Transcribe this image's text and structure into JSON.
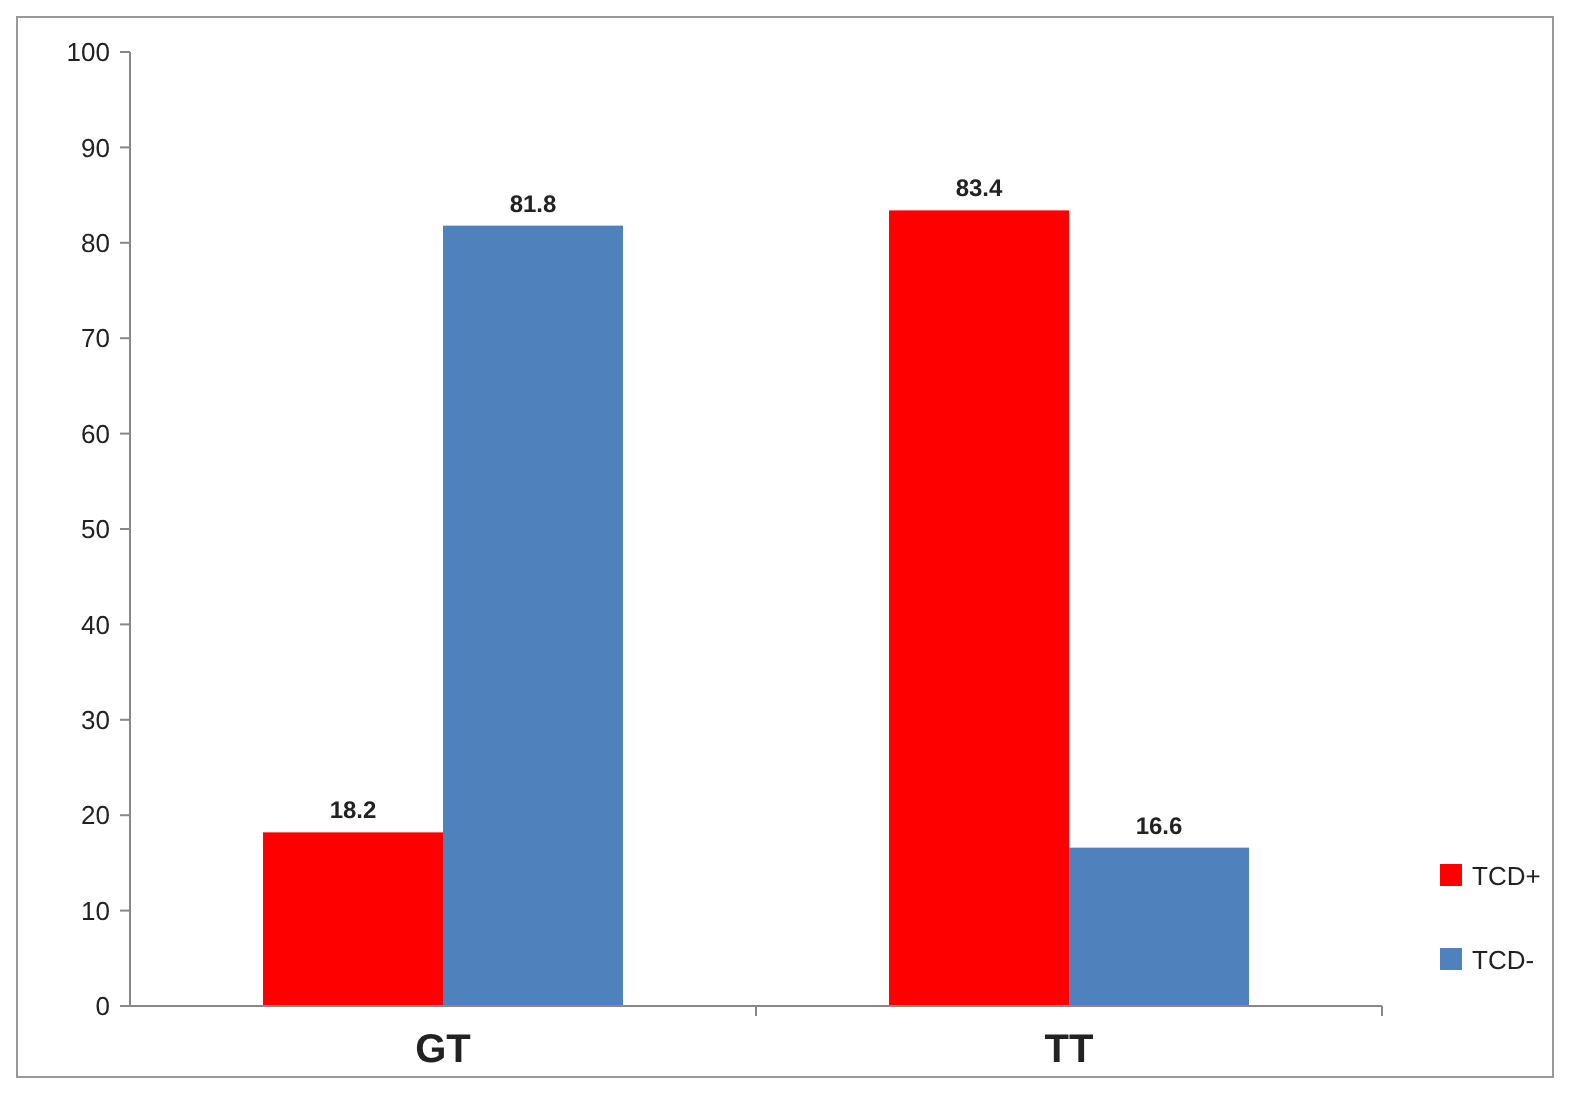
{
  "chart_data": {
    "type": "bar",
    "categories": [
      "GT",
      "TT"
    ],
    "series": [
      {
        "name": "TCD+",
        "color": "#ff0000",
        "values": [
          18.2,
          83.4
        ]
      },
      {
        "name": "TCD-",
        "color": "#4f81bd",
        "values": [
          81.8,
          16.6
        ]
      }
    ],
    "ylim": [
      0,
      100
    ],
    "yticks": [
      0,
      10,
      20,
      30,
      40,
      50,
      60,
      70,
      80,
      90,
      100
    ],
    "grid": false,
    "legend": "right",
    "data_labels": true
  }
}
